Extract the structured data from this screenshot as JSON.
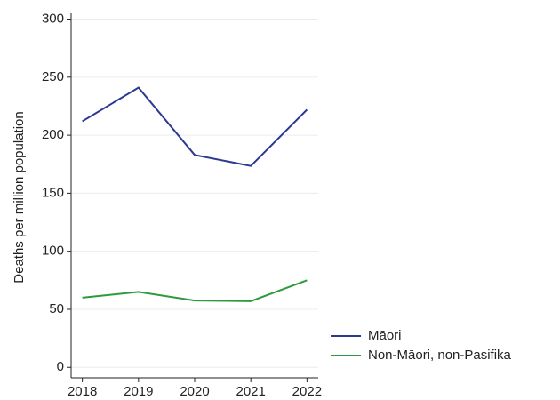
{
  "chart_data": {
    "type": "line",
    "y_label": "Deaths per million population",
    "x": [
      2018,
      2019,
      2020,
      2021,
      2022
    ],
    "xlim": [
      2017.8,
      2022.2
    ],
    "xticks": [
      2018,
      2019,
      2020,
      2021,
      2022
    ],
    "ylim": [
      -9,
      305
    ],
    "yticks": [
      0,
      50,
      100,
      150,
      200,
      250,
      300
    ],
    "grid": true,
    "legend": "bottom-right",
    "series": [
      {
        "name": "Māori",
        "color": "#2b3990",
        "values": [
          212,
          241,
          183,
          173.5,
          222
        ]
      },
      {
        "name": "Non-Māori, non-Pasifika",
        "color": "#2e9a3e",
        "values": [
          60,
          65,
          57.5,
          57,
          75
        ]
      }
    ]
  }
}
